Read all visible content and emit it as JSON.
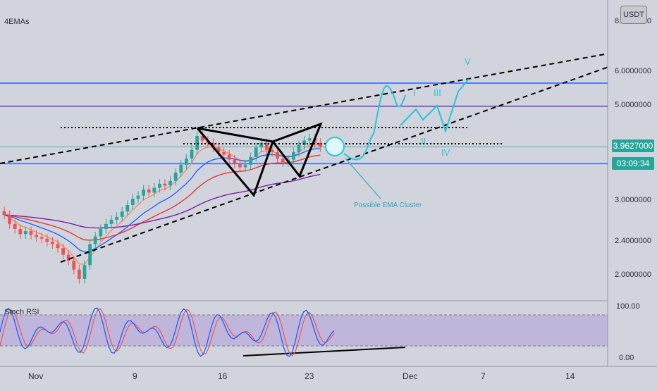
{
  "header": {
    "indicator_label": "4EMAs",
    "currency": "USDT"
  },
  "price_axis": {
    "ticks": [
      "8.0000000",
      "6.0000000",
      "5.0000000",
      "3.0000000",
      "2.4000000",
      "2.0000000"
    ],
    "current_price": "3.9627000",
    "countdown": "03:09:34"
  },
  "time_axis": {
    "ticks": [
      "Nov",
      "9",
      "16",
      "23",
      "Dec",
      "7",
      "14"
    ]
  },
  "annotations": {
    "ema_cluster": "Possible EMA Cluster",
    "wave_labels": [
      "I",
      "II",
      "III",
      "IV",
      "V"
    ]
  },
  "stoch": {
    "title": "Stoch RSI",
    "ticks": [
      "100.00",
      "0.00"
    ]
  },
  "colors": {
    "background": "#d1d4dc",
    "blue_level": "#2962ff",
    "purple_level": "#673ab7",
    "candle_up": "#26a69a",
    "candle_down": "#ef5350",
    "projection": "#26c6da",
    "price_badge": "#26a69a",
    "stoch_k": "#2962ff",
    "stoch_d": "#ef5350",
    "stoch_band": "#7e57c2"
  },
  "chart_data": {
    "type": "candlestick",
    "price_levels": [
      5.58,
      4.93,
      3.62
    ],
    "candles_close_approx": [
      2.75,
      2.62,
      2.55,
      2.48,
      2.52,
      2.47,
      2.44,
      2.42,
      2.38,
      2.35,
      2.3,
      2.22,
      2.15,
      2.05,
      1.95,
      2.1,
      2.35,
      2.45,
      2.55,
      2.62,
      2.68,
      2.72,
      2.8,
      2.9,
      3.0,
      3.05,
      3.15,
      3.1,
      3.18,
      3.25,
      3.22,
      3.3,
      3.45,
      3.6,
      3.72,
      3.9,
      4.2,
      4.1,
      4.05,
      3.95,
      3.85,
      3.8,
      3.7,
      3.62,
      3.55,
      3.6,
      3.75,
      3.95,
      4.05,
      3.9,
      3.85,
      3.72,
      3.65,
      3.7,
      3.85,
      4.0,
      4.1,
      4.15,
      4.05,
      3.96
    ],
    "stoch_rsi": {
      "ylim": [
        0,
        100
      ],
      "levels": [
        80,
        20
      ]
    }
  }
}
